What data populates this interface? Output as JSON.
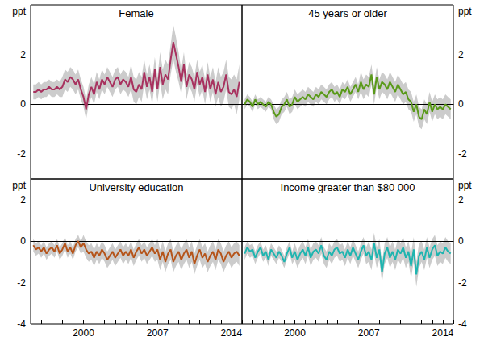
{
  "chart_data": [
    {
      "type": "line",
      "title": "Female",
      "ylabel": "ppt",
      "color": "#a8325f",
      "tick_labels": "y",
      "xlim": [
        1995,
        2015
      ],
      "xticks": [
        2000,
        2007,
        2014
      ],
      "ylim": [
        -3,
        4
      ],
      "yticks": [
        -2,
        0,
        2
      ],
      "x": [
        1995.25,
        1995.5,
        1995.75,
        1996,
        1996.25,
        1996.5,
        1996.75,
        1997,
        1997.25,
        1997.5,
        1997.75,
        1998,
        1998.25,
        1998.5,
        1998.75,
        1999,
        1999.25,
        1999.5,
        1999.75,
        2000,
        2000.25,
        2000.5,
        2000.75,
        2001,
        2001.25,
        2001.5,
        2001.75,
        2002,
        2002.25,
        2002.5,
        2002.75,
        2003,
        2003.25,
        2003.5,
        2003.75,
        2004,
        2004.25,
        2004.5,
        2004.75,
        2005,
        2005.25,
        2005.5,
        2005.75,
        2006,
        2006.25,
        2006.5,
        2006.75,
        2007,
        2007.25,
        2007.5,
        2007.75,
        2008,
        2008.25,
        2008.5,
        2008.75,
        2009,
        2009.25,
        2009.5,
        2009.75,
        2010,
        2010.25,
        2010.5,
        2010.75,
        2011,
        2011.25,
        2011.5,
        2011.75,
        2012,
        2012.25,
        2012.5,
        2012.75,
        2013,
        2013.25,
        2013.5,
        2013.75,
        2014,
        2014.25,
        2014.5,
        2014.75
      ],
      "values": [
        0.5,
        0.5,
        0.6,
        0.5,
        0.6,
        0.6,
        0.7,
        0.6,
        0.6,
        0.7,
        0.6,
        0.7,
        1.0,
        0.9,
        1.1,
        1.0,
        0.8,
        1.0,
        0.6,
        0.3,
        -0.2,
        0.4,
        0.7,
        0.4,
        0.9,
        0.6,
        1.0,
        0.8,
        1.1,
        0.9,
        0.7,
        1.0,
        1.1,
        0.8,
        1.0,
        0.9,
        0.7,
        1.1,
        0.6,
        0.5,
        0.8,
        0.6,
        1.3,
        0.7,
        1.1,
        0.5,
        1.4,
        0.6,
        1.5,
        0.8,
        1.2,
        1.0,
        1.8,
        2.5,
        2.0,
        1.5,
        0.9,
        1.6,
        0.7,
        1.2,
        1.0,
        0.6,
        1.3,
        0.8,
        1.1,
        0.5,
        1.2,
        0.6,
        1.0,
        0.4,
        0.9,
        0.5,
        0.7,
        1.2,
        0.5,
        0.4,
        0.6,
        0.3,
        0.9
      ],
      "error": [
        0.3,
        0.3,
        0.3,
        0.3,
        0.3,
        0.3,
        0.3,
        0.3,
        0.3,
        0.3,
        0.3,
        0.4,
        0.4,
        0.4,
        0.4,
        0.4,
        0.4,
        0.4,
        0.4,
        0.4,
        0.4,
        0.4,
        0.4,
        0.4,
        0.4,
        0.4,
        0.4,
        0.4,
        0.4,
        0.4,
        0.4,
        0.4,
        0.4,
        0.4,
        0.4,
        0.4,
        0.4,
        0.5,
        0.5,
        0.5,
        0.5,
        0.5,
        0.5,
        0.5,
        0.5,
        0.5,
        0.5,
        0.5,
        0.6,
        0.6,
        0.6,
        0.6,
        0.6,
        0.7,
        0.7,
        0.6,
        0.5,
        0.5,
        0.5,
        0.5,
        0.5,
        0.5,
        0.5,
        0.5,
        0.5,
        0.5,
        0.5,
        0.5,
        0.5,
        0.5,
        0.6,
        0.6,
        0.6,
        0.6,
        0.6,
        0.6,
        0.6,
        0.7,
        0.7
      ]
    },
    {
      "type": "line",
      "title": "45 years or older",
      "ylabel": "ppt",
      "color": "#5a9a1a",
      "tick_labels": "y",
      "xlim": [
        1995,
        2015
      ],
      "xticks": [
        2000,
        2007,
        2014
      ],
      "ylim": [
        -3,
        4
      ],
      "yticks": [
        -2,
        0,
        2
      ],
      "x": [
        1995.25,
        1995.5,
        1995.75,
        1996,
        1996.25,
        1996.5,
        1996.75,
        1997,
        1997.25,
        1997.5,
        1997.75,
        1998,
        1998.25,
        1998.5,
        1998.75,
        1999,
        1999.25,
        1999.5,
        1999.75,
        2000,
        2000.25,
        2000.5,
        2000.75,
        2001,
        2001.25,
        2001.5,
        2001.75,
        2002,
        2002.25,
        2002.5,
        2002.75,
        2003,
        2003.25,
        2003.5,
        2003.75,
        2004,
        2004.25,
        2004.5,
        2004.75,
        2005,
        2005.25,
        2005.5,
        2005.75,
        2006,
        2006.25,
        2006.5,
        2006.75,
        2007,
        2007.25,
        2007.5,
        2007.75,
        2008,
        2008.25,
        2008.5,
        2008.75,
        2009,
        2009.25,
        2009.5,
        2009.75,
        2010,
        2010.25,
        2010.5,
        2010.75,
        2011,
        2011.25,
        2011.5,
        2011.75,
        2012,
        2012.25,
        2012.5,
        2012.75,
        2013,
        2013.25,
        2013.5,
        2013.75,
        2014,
        2014.25,
        2014.5,
        2014.75
      ],
      "values": [
        0.0,
        0.2,
        0.1,
        -0.1,
        0.2,
        0.0,
        0.1,
        0.0,
        -0.1,
        0.1,
        0.0,
        -0.3,
        -0.5,
        -0.4,
        -0.1,
        0.0,
        0.2,
        -0.1,
        0.0,
        0.3,
        0.1,
        0.2,
        0.3,
        0.2,
        0.4,
        0.3,
        0.2,
        0.4,
        0.3,
        0.5,
        0.4,
        0.3,
        0.5,
        0.6,
        0.4,
        0.5,
        0.3,
        0.6,
        0.5,
        0.7,
        0.4,
        0.6,
        0.8,
        0.5,
        0.9,
        0.6,
        0.8,
        0.7,
        1.2,
        0.4,
        1.1,
        0.6,
        0.9,
        0.8,
        0.6,
        0.9,
        0.7,
        0.5,
        0.8,
        0.6,
        0.4,
        0.5,
        0.2,
        0.1,
        -0.3,
        0.0,
        -0.5,
        -0.6,
        -0.2,
        -0.4,
        0.1,
        -0.3,
        0.0,
        -0.2,
        -0.1,
        -0.2,
        0.0,
        -0.1,
        -0.2
      ],
      "error": [
        0.2,
        0.2,
        0.2,
        0.2,
        0.2,
        0.2,
        0.2,
        0.2,
        0.2,
        0.2,
        0.2,
        0.3,
        0.3,
        0.3,
        0.3,
        0.3,
        0.3,
        0.3,
        0.3,
        0.3,
        0.3,
        0.3,
        0.3,
        0.3,
        0.3,
        0.3,
        0.3,
        0.3,
        0.3,
        0.3,
        0.3,
        0.3,
        0.3,
        0.3,
        0.3,
        0.3,
        0.3,
        0.3,
        0.3,
        0.3,
        0.3,
        0.3,
        0.3,
        0.3,
        0.4,
        0.4,
        0.4,
        0.4,
        0.4,
        0.4,
        0.4,
        0.4,
        0.4,
        0.4,
        0.4,
        0.4,
        0.4,
        0.4,
        0.4,
        0.4,
        0.4,
        0.4,
        0.4,
        0.4,
        0.4,
        0.4,
        0.4,
        0.4,
        0.4,
        0.4,
        0.4,
        0.4,
        0.4,
        0.4,
        0.4,
        0.4,
        0.4,
        0.4,
        0.4
      ]
    },
    {
      "type": "line",
      "title": "University education",
      "ylabel": "ppt",
      "color": "#b5541a",
      "xlim": [
        1995,
        2015
      ],
      "xticks": [
        2000,
        2007,
        2014
      ],
      "ylim": [
        -4,
        3
      ],
      "yticks": [
        -4,
        -2,
        0,
        2
      ],
      "x": [
        1995.25,
        1995.5,
        1995.75,
        1996,
        1996.25,
        1996.5,
        1996.75,
        1997,
        1997.25,
        1997.5,
        1997.75,
        1998,
        1998.25,
        1998.5,
        1998.75,
        1999,
        1999.25,
        1999.5,
        1999.75,
        2000,
        2000.25,
        2000.5,
        2000.75,
        2001,
        2001.25,
        2001.5,
        2001.75,
        2002,
        2002.25,
        2002.5,
        2002.75,
        2003,
        2003.25,
        2003.5,
        2003.75,
        2004,
        2004.25,
        2004.5,
        2004.75,
        2005,
        2005.25,
        2005.5,
        2005.75,
        2006,
        2006.25,
        2006.5,
        2006.75,
        2007,
        2007.25,
        2007.5,
        2007.75,
        2008,
        2008.25,
        2008.5,
        2008.75,
        2009,
        2009.25,
        2009.5,
        2009.75,
        2010,
        2010.25,
        2010.5,
        2010.75,
        2011,
        2011.25,
        2011.5,
        2011.75,
        2012,
        2012.25,
        2012.5,
        2012.75,
        2013,
        2013.25,
        2013.5,
        2013.75,
        2014,
        2014.25,
        2014.5,
        2014.75
      ],
      "values": [
        -0.2,
        -0.4,
        -0.3,
        -0.5,
        -0.3,
        -0.6,
        -0.4,
        -0.3,
        -0.5,
        -0.2,
        -0.6,
        -0.4,
        -0.1,
        -0.5,
        -0.3,
        -0.6,
        -0.2,
        0.0,
        -0.3,
        -0.1,
        -0.4,
        -0.6,
        -0.5,
        -0.8,
        -0.5,
        -0.7,
        -0.4,
        -0.6,
        -0.9,
        -0.7,
        -0.5,
        -0.8,
        -0.6,
        -0.4,
        -0.7,
        -0.5,
        -0.7,
        -0.4,
        -0.8,
        -0.5,
        -0.3,
        -0.6,
        -0.4,
        -0.7,
        -0.5,
        -0.3,
        -0.6,
        -0.4,
        -0.9,
        -0.5,
        -1.0,
        -0.6,
        -0.4,
        -1.0,
        -0.7,
        -0.5,
        -0.9,
        -0.6,
        -0.4,
        -0.8,
        -0.5,
        -1.1,
        -0.7,
        -0.4,
        -0.8,
        -0.6,
        -1.0,
        -0.7,
        -0.5,
        -0.9,
        -0.4,
        -0.6,
        -1.0,
        -0.7,
        -0.5,
        -0.8,
        -0.6,
        -0.5,
        -0.7
      ],
      "error": [
        0.3,
        0.3,
        0.3,
        0.3,
        0.3,
        0.3,
        0.3,
        0.3,
        0.3,
        0.3,
        0.3,
        0.3,
        0.3,
        0.3,
        0.3,
        0.3,
        0.3,
        0.3,
        0.3,
        0.4,
        0.4,
        0.4,
        0.4,
        0.4,
        0.4,
        0.4,
        0.4,
        0.4,
        0.4,
        0.4,
        0.4,
        0.4,
        0.4,
        0.4,
        0.4,
        0.4,
        0.4,
        0.4,
        0.4,
        0.4,
        0.4,
        0.4,
        0.4,
        0.4,
        0.4,
        0.4,
        0.4,
        0.5,
        0.5,
        0.5,
        0.5,
        0.5,
        0.5,
        0.5,
        0.5,
        0.5,
        0.5,
        0.5,
        0.5,
        0.5,
        0.5,
        0.5,
        0.5,
        0.5,
        0.5,
        0.5,
        0.5,
        0.5,
        0.5,
        0.5,
        0.5,
        0.5,
        0.5,
        0.5,
        0.5,
        0.5,
        0.5,
        0.5,
        0.5
      ]
    },
    {
      "type": "line",
      "title": "Income greater than $80 000",
      "ylabel": "ppt",
      "color": "#1fb5b0",
      "xlim": [
        1995,
        2015
      ],
      "xticks": [
        2000,
        2007,
        2014
      ],
      "ylim": [
        -4,
        3
      ],
      "yticks": [
        -4,
        -2,
        0,
        2
      ],
      "x": [
        1995.25,
        1995.5,
        1995.75,
        1996,
        1996.25,
        1996.5,
        1996.75,
        1997,
        1997.25,
        1997.5,
        1997.75,
        1998,
        1998.25,
        1998.5,
        1998.75,
        1999,
        1999.25,
        1999.5,
        1999.75,
        2000,
        2000.25,
        2000.5,
        2000.75,
        2001,
        2001.25,
        2001.5,
        2001.75,
        2002,
        2002.25,
        2002.5,
        2002.75,
        2003,
        2003.25,
        2003.5,
        2003.75,
        2004,
        2004.25,
        2004.5,
        2004.75,
        2005,
        2005.25,
        2005.5,
        2005.75,
        2006,
        2006.25,
        2006.5,
        2006.75,
        2007,
        2007.25,
        2007.5,
        2007.75,
        2008,
        2008.25,
        2008.5,
        2008.75,
        2009,
        2009.25,
        2009.5,
        2009.75,
        2010,
        2010.25,
        2010.5,
        2010.75,
        2011,
        2011.25,
        2011.5,
        2011.75,
        2012,
        2012.25,
        2012.5,
        2012.75,
        2013,
        2013.25,
        2013.5,
        2013.75,
        2014,
        2014.25,
        2014.5,
        2014.75
      ],
      "values": [
        -0.6,
        -0.3,
        -0.5,
        -0.4,
        -0.8,
        -0.5,
        -0.3,
        -0.7,
        -0.5,
        -0.9,
        -0.4,
        -0.6,
        -0.8,
        -0.5,
        -0.7,
        -1.0,
        -0.6,
        -0.3,
        -0.8,
        -0.5,
        -0.9,
        -0.6,
        -0.4,
        -0.7,
        -0.3,
        -0.8,
        -0.5,
        -0.4,
        -0.6,
        -0.2,
        -0.7,
        -0.9,
        -0.5,
        -0.7,
        -0.4,
        -0.3,
        -0.6,
        -0.5,
        -0.8,
        -0.4,
        -0.7,
        -0.3,
        -0.6,
        -0.9,
        -0.5,
        -0.2,
        -0.7,
        -0.5,
        -0.9,
        -0.1,
        -0.8,
        -0.4,
        -1.5,
        -0.6,
        -0.3,
        -0.8,
        -0.5,
        -0.9,
        -0.4,
        -0.6,
        -0.3,
        -0.8,
        -0.5,
        -1.2,
        -0.4,
        -1.6,
        -0.7,
        -0.5,
        -0.9,
        -0.3,
        -0.8,
        -0.4,
        -0.2,
        -0.7,
        -0.5,
        -0.6,
        -0.3,
        -0.5,
        -0.6
      ],
      "error": [
        0.3,
        0.3,
        0.3,
        0.3,
        0.3,
        0.3,
        0.3,
        0.3,
        0.3,
        0.3,
        0.3,
        0.3,
        0.3,
        0.3,
        0.3,
        0.3,
        0.3,
        0.3,
        0.3,
        0.4,
        0.4,
        0.4,
        0.4,
        0.4,
        0.4,
        0.4,
        0.4,
        0.4,
        0.4,
        0.4,
        0.4,
        0.4,
        0.4,
        0.4,
        0.4,
        0.4,
        0.4,
        0.4,
        0.4,
        0.4,
        0.4,
        0.4,
        0.4,
        0.4,
        0.4,
        0.4,
        0.4,
        0.5,
        0.5,
        0.5,
        0.5,
        0.5,
        0.5,
        0.5,
        0.5,
        0.5,
        0.5,
        0.5,
        0.5,
        0.5,
        0.5,
        0.5,
        0.5,
        0.6,
        0.6,
        0.6,
        0.6,
        0.5,
        0.5,
        0.5,
        0.5,
        0.5,
        0.5,
        0.5,
        0.5,
        0.5,
        0.5,
        0.5,
        0.5
      ]
    }
  ]
}
